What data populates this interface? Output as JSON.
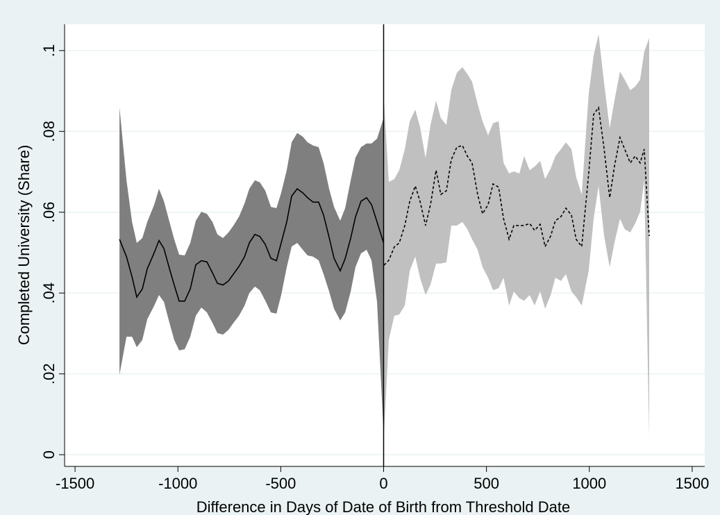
{
  "chart_data": {
    "type": "line",
    "xlabel": "Difference in Days of Date of Birth from Threshold Date",
    "ylabel": "Completed University (Share)",
    "xlim": [
      -1551,
      1561
    ],
    "ylim": [
      -0.0029,
      0.1065
    ],
    "xticks": [
      -1500,
      -1000,
      -500,
      0,
      500,
      1000,
      1500
    ],
    "yticks": [
      0,
      {
        "value": 0.02,
        "label": ".02"
      },
      {
        "value": 0.04,
        "label": ".04"
      },
      {
        "value": 0.06,
        "label": ".06"
      },
      {
        "value": 0.08,
        "label": ".08"
      },
      {
        "value": 0.1,
        "label": ".1"
      }
    ],
    "grid": true,
    "xline": 0,
    "series": [
      {
        "color": "#000000",
        "band_color": "#7f7f7f",
        "dashed": false,
        "x": [
          -1284,
          -1250,
          -1223,
          -1200,
          -1173,
          -1149,
          -1115,
          -1092,
          -1068,
          -1041,
          -1018,
          -994,
          -967,
          -940,
          -913,
          -886,
          -859,
          -832,
          -808,
          -781,
          -754,
          -730,
          -703,
          -676,
          -653,
          -626,
          -602,
          -575,
          -548,
          -521,
          -498,
          -471,
          -447,
          -420,
          -393,
          -370,
          -343,
          -316,
          -292,
          -265,
          -241,
          -211,
          -187,
          -160,
          -137,
          -110,
          -83,
          -59,
          -32,
          0
        ],
        "values": [
          0.0533,
          0.049,
          0.044,
          0.039,
          0.041,
          0.046,
          0.05,
          0.053,
          0.051,
          0.046,
          0.042,
          0.038,
          0.038,
          0.041,
          0.047,
          0.048,
          0.0477,
          0.045,
          0.0424,
          0.042,
          0.043,
          0.0447,
          0.0466,
          0.049,
          0.0524,
          0.0545,
          0.054,
          0.052,
          0.0486,
          0.048,
          0.0524,
          0.0576,
          0.064,
          0.0658,
          0.0648,
          0.0636,
          0.0625,
          0.0625,
          0.0593,
          0.0538,
          0.0486,
          0.0455,
          0.0485,
          0.0536,
          0.0588,
          0.0627,
          0.0636,
          0.0619,
          0.0576,
          0.0524
        ],
        "upper": [
          0.0859,
          0.0679,
          0.0576,
          0.0524,
          0.0536,
          0.0576,
          0.0619,
          0.0658,
          0.0627,
          0.0576,
          0.0533,
          0.0495,
          0.0493,
          0.0524,
          0.0579,
          0.0601,
          0.0596,
          0.0576,
          0.0545,
          0.0536,
          0.055,
          0.0567,
          0.0589,
          0.0622,
          0.0658,
          0.0679,
          0.0674,
          0.0653,
          0.0613,
          0.061,
          0.0648,
          0.0704,
          0.0773,
          0.0796,
          0.0787,
          0.0773,
          0.0765,
          0.0761,
          0.0722,
          0.0658,
          0.0613,
          0.0579,
          0.061,
          0.0679,
          0.0735,
          0.0761,
          0.077,
          0.077,
          0.0782,
          0.0833
        ],
        "lower": [
          0.0198,
          0.0292,
          0.0292,
          0.0266,
          0.0284,
          0.0335,
          0.0369,
          0.0395,
          0.0378,
          0.0326,
          0.0284,
          0.0258,
          0.0261,
          0.0292,
          0.0344,
          0.0364,
          0.0352,
          0.0326,
          0.0301,
          0.0297,
          0.0309,
          0.0326,
          0.0344,
          0.0369,
          0.04,
          0.0416,
          0.0407,
          0.0381,
          0.0352,
          0.0349,
          0.0395,
          0.0464,
          0.0515,
          0.0524,
          0.0507,
          0.0493,
          0.049,
          0.0481,
          0.0447,
          0.0404,
          0.0361,
          0.0332,
          0.0352,
          0.0404,
          0.0464,
          0.0498,
          0.0507,
          0.0481,
          0.0378,
          0.0052
        ]
      },
      {
        "color": "#000000",
        "band_color": "#c0c0c0",
        "dashed": true,
        "x": [
          2,
          25,
          52,
          76,
          103,
          127,
          154,
          177,
          204,
          228,
          255,
          278,
          305,
          329,
          356,
          383,
          407,
          430,
          457,
          481,
          508,
          532,
          559,
          583,
          610,
          633,
          660,
          683,
          710,
          734,
          761,
          785,
          812,
          835,
          862,
          886,
          913,
          936,
          963,
          997,
          1021,
          1045,
          1072,
          1099,
          1122,
          1149,
          1172,
          1199,
          1223,
          1247,
          1267,
          1291
        ],
        "values": [
          0.0469,
          0.0481,
          0.0514,
          0.0524,
          0.0567,
          0.0627,
          0.0665,
          0.0627,
          0.0567,
          0.0619,
          0.0704,
          0.0644,
          0.0653,
          0.073,
          0.0761,
          0.0765,
          0.0739,
          0.0722,
          0.0644,
          0.0596,
          0.0619,
          0.067,
          0.0662,
          0.0584,
          0.0533,
          0.0567,
          0.0567,
          0.0567,
          0.0572,
          0.0555,
          0.057,
          0.0515,
          0.0541,
          0.0579,
          0.0589,
          0.061,
          0.0593,
          0.0533,
          0.0515,
          0.0696,
          0.0842,
          0.0859,
          0.0756,
          0.0636,
          0.0713,
          0.0785,
          0.0756,
          0.0722,
          0.0739,
          0.0722,
          0.0756,
          0.0541
        ],
        "upper": [
          0.0876,
          0.0675,
          0.0682,
          0.0704,
          0.0756,
          0.0825,
          0.0854,
          0.0811,
          0.0734,
          0.0816,
          0.0876,
          0.0833,
          0.0816,
          0.0902,
          0.0945,
          0.0959,
          0.0942,
          0.0923,
          0.0868,
          0.0825,
          0.079,
          0.082,
          0.0825,
          0.0722,
          0.0696,
          0.0701,
          0.0696,
          0.0739,
          0.0704,
          0.0713,
          0.0727,
          0.0682,
          0.0708,
          0.0739,
          0.0756,
          0.0773,
          0.0756,
          0.0687,
          0.0644,
          0.0893,
          0.0988,
          0.104,
          0.0919,
          0.0808,
          0.0876,
          0.0948,
          0.0928,
          0.0902,
          0.0911,
          0.0928,
          0.0997,
          0.1031
        ],
        "lower": [
          0.0052,
          0.0284,
          0.0344,
          0.0347,
          0.0369,
          0.0455,
          0.049,
          0.0438,
          0.0395,
          0.0421,
          0.0473,
          0.0473,
          0.0476,
          0.0567,
          0.0567,
          0.0576,
          0.0558,
          0.0533,
          0.0507,
          0.0464,
          0.0438,
          0.0407,
          0.0412,
          0.0438,
          0.0369,
          0.0404,
          0.0387,
          0.0381,
          0.0395,
          0.0369,
          0.0404,
          0.0361,
          0.0395,
          0.0438,
          0.043,
          0.0447,
          0.0404,
          0.039,
          0.0369,
          0.0455,
          0.0584,
          0.0665,
          0.0541,
          0.0464,
          0.0524,
          0.0584,
          0.0558,
          0.055,
          0.0572,
          0.0601,
          0.0679,
          0.0043
        ]
      }
    ]
  }
}
